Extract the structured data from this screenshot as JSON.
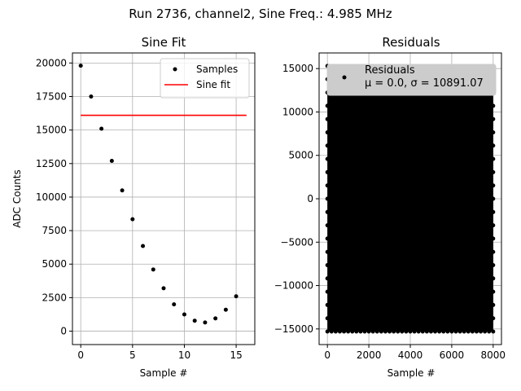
{
  "figure": {
    "suptitle": "Run 2736, channel2, Sine Freq.: 4.985 MHz"
  },
  "colors": {
    "samples": "#000000",
    "fit": "#ff0000",
    "grid": "#b0b0b0",
    "legend_fill": "#cccccc"
  },
  "chart_data": [
    {
      "type": "scatter",
      "title": "Sine Fit",
      "xlabel": "Sample #",
      "ylabel": "ADC Counts",
      "xlim": [
        -0.8,
        16.8
      ],
      "ylim": [
        -1000,
        20750
      ],
      "xticks": [
        0,
        5,
        10,
        15
      ],
      "yticks": [
        0,
        2500,
        5000,
        7500,
        10000,
        12500,
        15000,
        17500,
        20000
      ],
      "grid": true,
      "legend": "top-right",
      "series": [
        {
          "name": "Samples",
          "marker": "dot",
          "x": [
            0,
            1,
            2,
            3,
            4,
            5,
            6,
            7,
            8,
            9,
            10,
            11,
            12,
            13,
            14,
            15
          ],
          "y": [
            19800,
            17500,
            15100,
            12700,
            10500,
            8350,
            6350,
            4600,
            3200,
            2000,
            1250,
            780,
            650,
            950,
            1600,
            2600
          ]
        },
        {
          "name": "Sine fit",
          "marker": "line",
          "x": [
            0,
            16
          ],
          "y": [
            16100,
            16100
          ]
        }
      ]
    },
    {
      "type": "scatter",
      "title": "Residuals",
      "xlabel": "Sample #",
      "ylabel": "",
      "xlim": [
        -400,
        8400
      ],
      "ylim": [
        -16800,
        16800
      ],
      "xticks": [
        0,
        2000,
        4000,
        6000,
        8000
      ],
      "yticks": [
        -15000,
        -10000,
        -5000,
        0,
        5000,
        10000,
        15000
      ],
      "grid": true,
      "legend": "top",
      "series": [
        {
          "name": "Residuals",
          "legend_line2": "μ = 0.0, σ = 10891.07",
          "marker": "dot",
          "x_range": [
            0,
            8000
          ],
          "y_range": [
            -15300,
            15300
          ]
        }
      ]
    }
  ]
}
